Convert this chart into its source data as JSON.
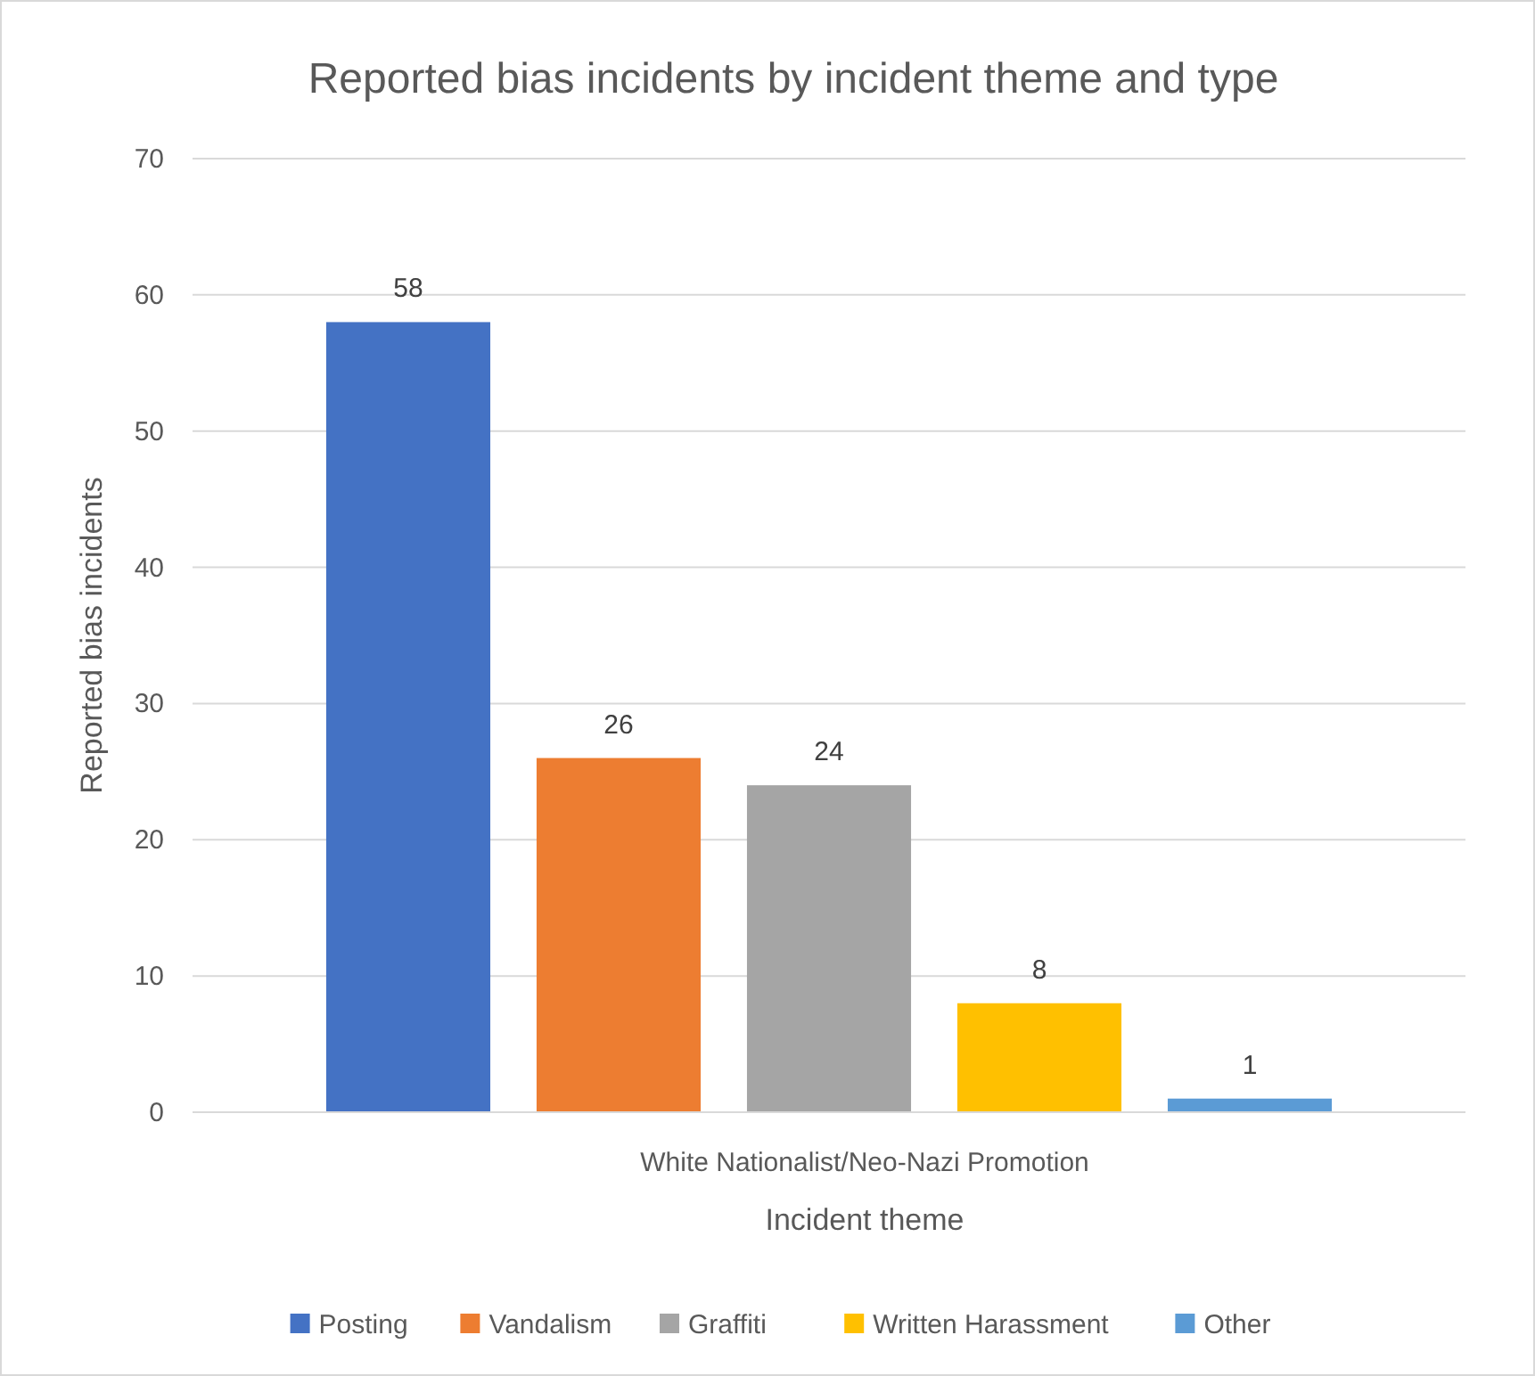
{
  "chart_data": {
    "type": "bar",
    "title": "Reported bias incidents by incident theme and type",
    "xlabel": "Incident theme",
    "ylabel": "Reported bias incidents",
    "categories": [
      "White Nationalist/Neo-Nazi Promotion"
    ],
    "series": [
      {
        "name": "Posting",
        "color": "#4472c4",
        "values": [
          58
        ]
      },
      {
        "name": "Vandalism",
        "color": "#ed7d31",
        "values": [
          26
        ]
      },
      {
        "name": "Graffiti",
        "color": "#a5a5a5",
        "values": [
          24
        ]
      },
      {
        "name": "Written Harassment",
        "color": "#ffc000",
        "values": [
          8
        ]
      },
      {
        "name": "Other",
        "color": "#5b9bd5",
        "values": [
          1
        ]
      }
    ],
    "ylim": [
      0,
      70
    ],
    "yticks": [
      0,
      10,
      20,
      30,
      40,
      50,
      60,
      70
    ],
    "grid": "y",
    "legend": "bottom",
    "data_labels": true
  }
}
